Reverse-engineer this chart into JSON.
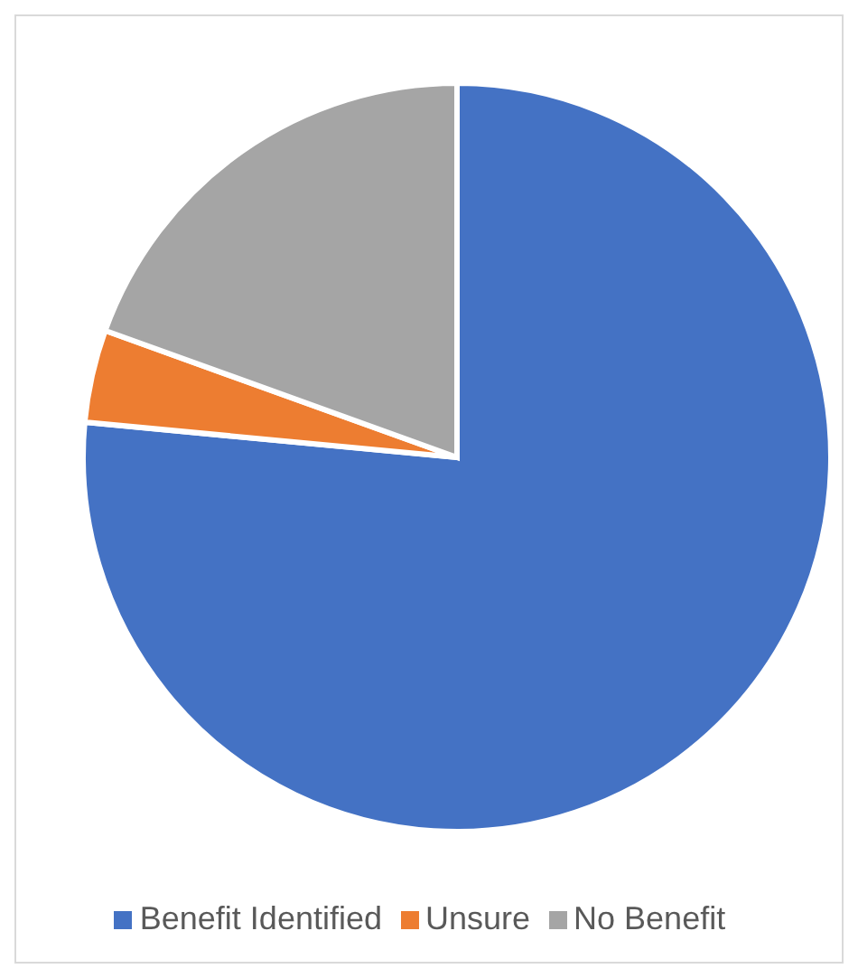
{
  "chart_data": {
    "type": "pie",
    "categories": [
      "Benefit Identified",
      "Unsure",
      "No Benefit"
    ],
    "values": [
      76.5,
      4,
      19.5
    ],
    "colors": [
      "#4472c4",
      "#ed7d31",
      "#a5a5a5"
    ],
    "legend": "bottom"
  }
}
